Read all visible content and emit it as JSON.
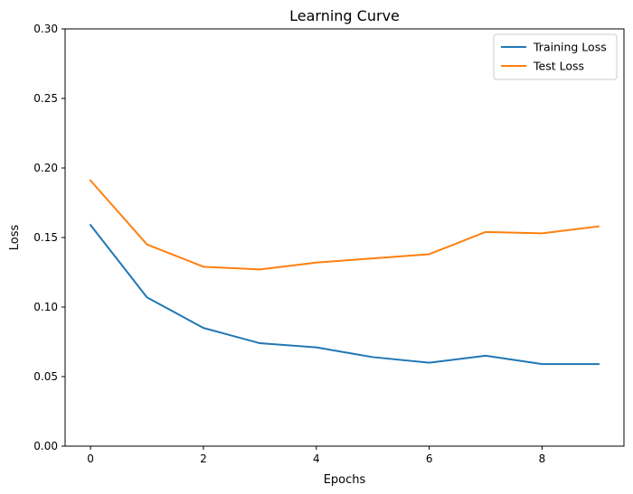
{
  "chart_data": {
    "type": "line",
    "title": "Learning Curve",
    "xlabel": "Epochs",
    "ylabel": "Loss",
    "x": [
      0,
      1,
      2,
      3,
      4,
      5,
      6,
      7,
      8,
      9
    ],
    "xlim": [
      -0.45,
      9.45
    ],
    "ylim": [
      0,
      0.3
    ],
    "xticks": [
      0,
      2,
      4,
      6,
      8
    ],
    "xtick_labels": [
      "0",
      "2",
      "4",
      "6",
      "8"
    ],
    "yticks": [
      0,
      0.05,
      0.1,
      0.15,
      0.2,
      0.25,
      0.3
    ],
    "ytick_labels": [
      "0.00",
      "0.05",
      "0.10",
      "0.15",
      "0.20",
      "0.25",
      "0.30"
    ],
    "grid": false,
    "legend_position": "top-right",
    "series": [
      {
        "name": "Training Loss",
        "color": "#1f77b4",
        "values": [
          0.159,
          0.107,
          0.085,
          0.074,
          0.071,
          0.064,
          0.06,
          0.065,
          0.059,
          0.059
        ]
      },
      {
        "name": "Test Loss",
        "color": "#ff7f0e",
        "values": [
          0.191,
          0.145,
          0.129,
          0.127,
          0.132,
          0.135,
          0.138,
          0.154,
          0.153,
          0.158
        ]
      }
    ]
  }
}
